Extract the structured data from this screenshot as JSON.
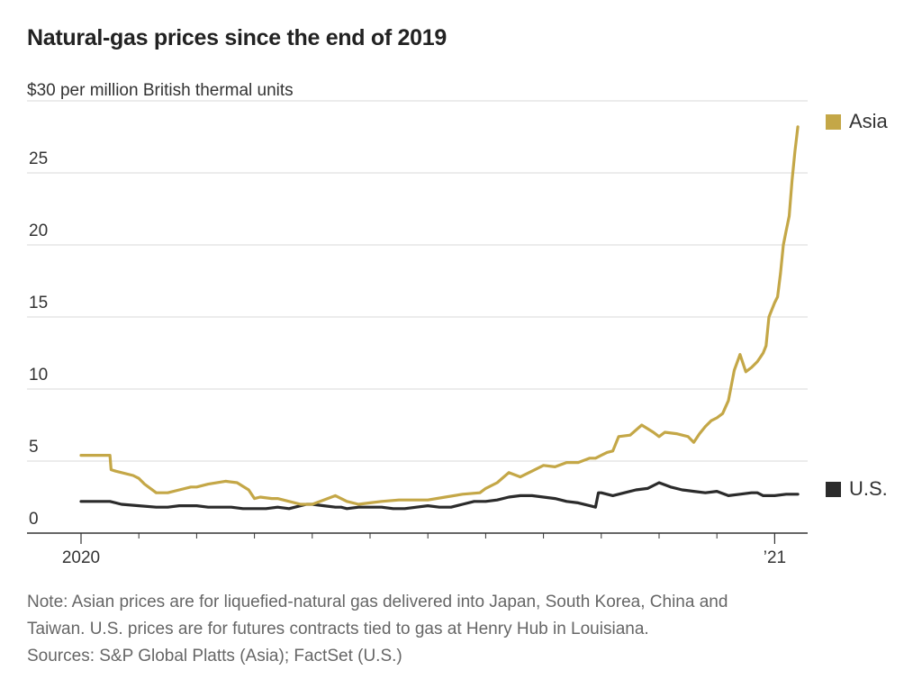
{
  "title": "Natural-gas prices since the end of 2019",
  "chart_data": {
    "type": "line",
    "title": "Natural-gas prices since the end of 2019",
    "unit_label": "$30 per million British thermal units",
    "xlabel": "",
    "ylabel": "",
    "ylim": [
      0,
      30
    ],
    "y_ticks": [
      "0",
      "5",
      "10",
      "15",
      "20",
      "25"
    ],
    "x_tick_labels": [
      {
        "label": "2020",
        "month": 0
      },
      {
        "label": "’21",
        "month": 12
      }
    ],
    "x_minor_ticks_months": [
      1,
      2,
      3,
      4,
      5,
      6,
      7,
      8,
      9,
      10,
      11,
      12
    ],
    "x_range_months": [
      0,
      12.5
    ],
    "series": [
      {
        "name": "Asia",
        "color": "#c4a747",
        "x": [
          0,
          0.25,
          0.5,
          0.52,
          0.6,
          0.9,
          1.0,
          1.1,
          1.3,
          1.5,
          1.7,
          1.9,
          2.0,
          2.2,
          2.5,
          2.7,
          2.9,
          3.0,
          3.1,
          3.3,
          3.4,
          3.6,
          3.8,
          4.0,
          4.2,
          4.4,
          4.6,
          4.8,
          5.0,
          5.2,
          5.5,
          5.8,
          6.0,
          6.3,
          6.6,
          6.9,
          7.0,
          7.2,
          7.4,
          7.6,
          7.8,
          8.0,
          8.2,
          8.4,
          8.6,
          8.8,
          8.9,
          9.0,
          9.1,
          9.2,
          9.3,
          9.5,
          9.7,
          9.9,
          10.0,
          10.1,
          10.3,
          10.4,
          10.5,
          10.6,
          10.7,
          10.8,
          10.9,
          11.0,
          11.1,
          11.2,
          11.3,
          11.4,
          11.5,
          11.6,
          11.7,
          11.75,
          11.8,
          11.85,
          11.9,
          12.0,
          12.05,
          12.1,
          12.15,
          12.2,
          12.25,
          12.3,
          12.35,
          12.4
        ],
        "values": [
          5.4,
          5.4,
          5.4,
          4.4,
          4.3,
          4.0,
          3.8,
          3.4,
          2.8,
          2.8,
          3.0,
          3.2,
          3.2,
          3.4,
          3.6,
          3.5,
          3.0,
          2.4,
          2.5,
          2.4,
          2.4,
          2.2,
          2.0,
          2.0,
          2.3,
          2.6,
          2.2,
          2.0,
          2.1,
          2.2,
          2.3,
          2.3,
          2.3,
          2.5,
          2.7,
          2.8,
          3.1,
          3.5,
          4.2,
          3.9,
          4.3,
          4.7,
          4.6,
          4.9,
          4.9,
          5.2,
          5.2,
          5.4,
          5.6,
          5.7,
          6.7,
          6.8,
          7.5,
          7.0,
          6.7,
          7.0,
          6.9,
          6.8,
          6.7,
          6.3,
          6.9,
          7.4,
          7.8,
          8.0,
          8.3,
          9.2,
          11.3,
          12.4,
          11.2,
          11.5,
          11.9,
          12.2,
          12.5,
          13.0,
          15.0,
          16.0,
          16.4,
          18.0,
          20.0,
          21.0,
          22.0,
          24.5,
          26.5,
          28.2
        ]
      },
      {
        "name": "U.S.",
        "color": "#2b2b2b",
        "x": [
          0,
          0.3,
          0.5,
          0.7,
          1.0,
          1.3,
          1.5,
          1.7,
          1.9,
          2.0,
          2.2,
          2.4,
          2.6,
          2.8,
          3.0,
          3.2,
          3.4,
          3.6,
          3.8,
          3.9,
          4.0,
          4.2,
          4.4,
          4.5,
          4.6,
          4.8,
          5.0,
          5.2,
          5.4,
          5.6,
          5.8,
          6.0,
          6.2,
          6.4,
          6.6,
          6.8,
          7.0,
          7.2,
          7.4,
          7.6,
          7.8,
          8.0,
          8.2,
          8.4,
          8.6,
          8.8,
          8.9,
          8.95,
          9.0,
          9.2,
          9.4,
          9.6,
          9.8,
          10.0,
          10.2,
          10.4,
          10.6,
          10.8,
          11.0,
          11.2,
          11.4,
          11.6,
          11.7,
          11.8,
          12.0,
          12.2,
          12.4
        ],
        "values": [
          2.2,
          2.2,
          2.2,
          2.0,
          1.9,
          1.8,
          1.8,
          1.9,
          1.9,
          1.9,
          1.8,
          1.8,
          1.8,
          1.7,
          1.7,
          1.7,
          1.8,
          1.7,
          1.9,
          2.0,
          2.0,
          1.9,
          1.8,
          1.8,
          1.7,
          1.8,
          1.8,
          1.8,
          1.7,
          1.7,
          1.8,
          1.9,
          1.8,
          1.8,
          2.0,
          2.2,
          2.2,
          2.3,
          2.5,
          2.6,
          2.6,
          2.5,
          2.4,
          2.2,
          2.1,
          1.9,
          1.8,
          2.8,
          2.8,
          2.6,
          2.8,
          3.0,
          3.1,
          3.5,
          3.2,
          3.0,
          2.9,
          2.8,
          2.9,
          2.6,
          2.7,
          2.8,
          2.8,
          2.6,
          2.6,
          2.7,
          2.7
        ]
      }
    ]
  },
  "note_lines": [
    "Note: Asian prices are for liquefied-natural gas delivered into Japan, South Korea, China and",
    "Taiwan. U.S. prices are for futures contracts tied to gas at Henry Hub in Louisiana.",
    "Sources: S&P Global Platts (Asia); FactSet (U.S.)"
  ],
  "colors": {
    "grid": "#d9d9d9",
    "axis": "#333333",
    "note": "#666666"
  }
}
